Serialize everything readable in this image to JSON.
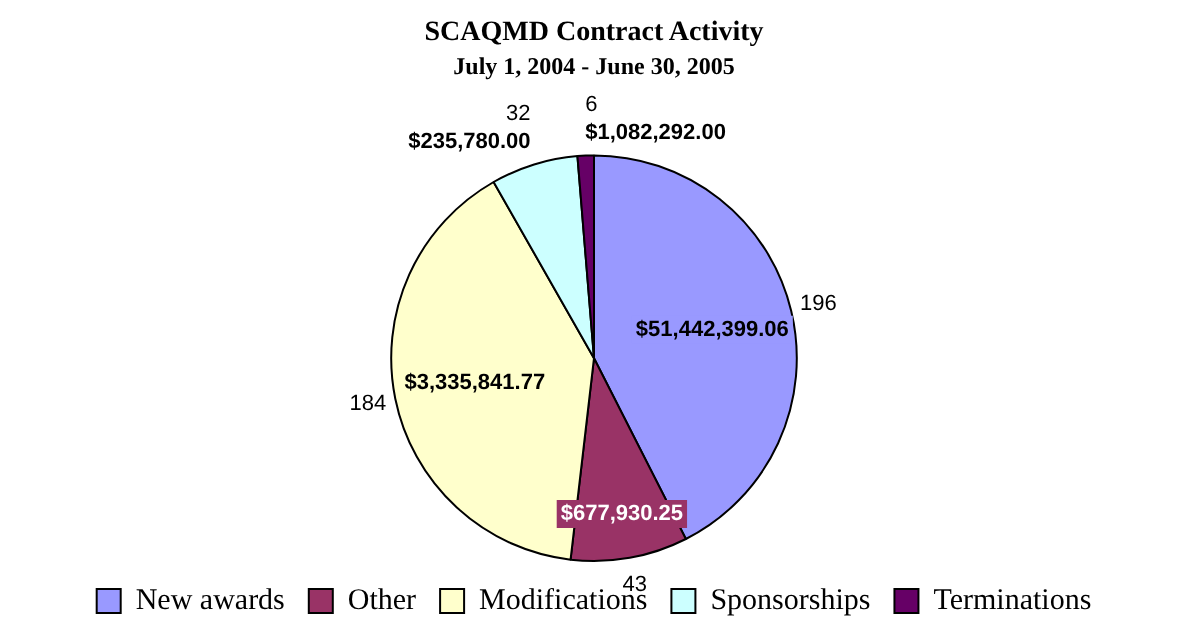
{
  "chart_data": {
    "type": "pie",
    "title": "SCAQMD Contract Activity",
    "subtitle": "July 1, 2004 - June 30, 2005",
    "categories": [
      "New awards",
      "Other",
      "Modifications",
      "Sponsorships",
      "Terminations"
    ],
    "values": [
      196,
      43,
      184,
      32,
      6
    ],
    "colors": [
      "#9999ff",
      "#993366",
      "#ffffcc",
      "#ccffff",
      "#660066"
    ],
    "data_labels": true,
    "annotations": [
      {
        "text": "$51,442,399.06",
        "x": "New awards"
      },
      {
        "text": "$677,930.25",
        "x": "Other"
      },
      {
        "text": "$3,335,841.77",
        "x": "Modifications"
      },
      {
        "text": "$235,780.00",
        "x": "Sponsorships"
      },
      {
        "text": "$1,082,292.00",
        "x": "Terminations"
      }
    ],
    "legend": "bottom"
  }
}
